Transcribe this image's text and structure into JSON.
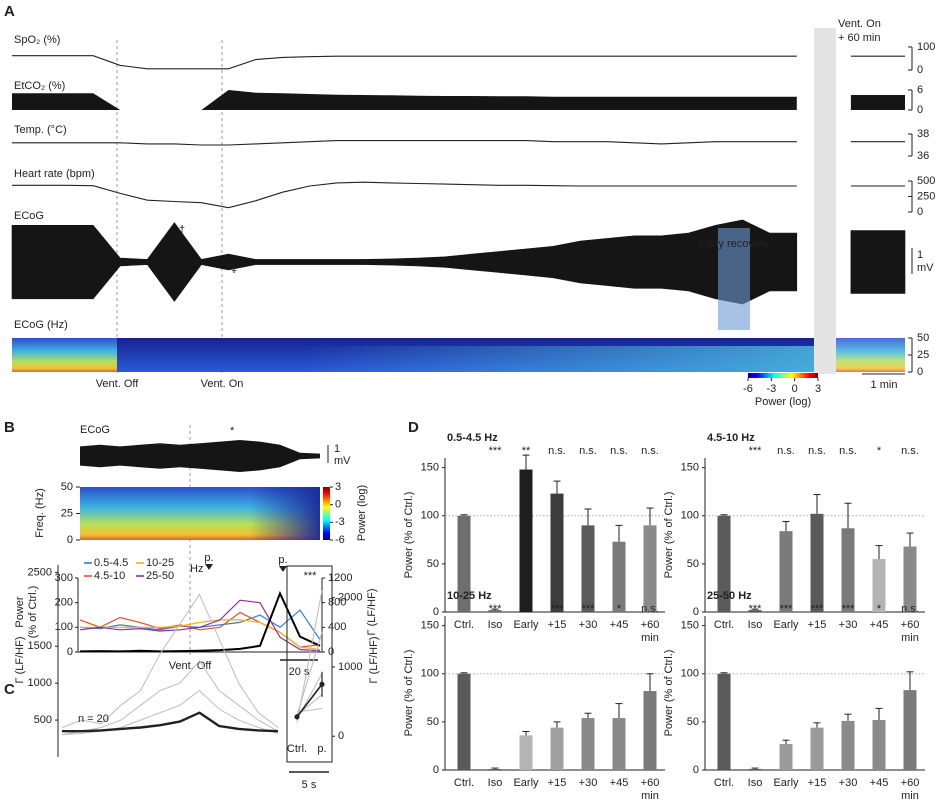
{
  "chart_data": [
    {
      "type": "physio",
      "panel": "A",
      "traces": [
        {
          "name": "SpO₂ (%)",
          "style": "line",
          "ylim": [
            0,
            100
          ],
          "yticks": [
            0,
            100
          ],
          "values": [
            62,
            62,
            62,
            62,
            20,
            5,
            5,
            5,
            5,
            45,
            55,
            58,
            60,
            60,
            60,
            60,
            60,
            60,
            60,
            60,
            60,
            60,
            60,
            60,
            60,
            60,
            60,
            60,
            60,
            60,
            null,
            60,
            60,
            60
          ]
        },
        {
          "name": "EtCO₂ (%)",
          "style": "area",
          "ylim": [
            0,
            6
          ],
          "yticks": [
            0,
            6
          ],
          "values": [
            5,
            5,
            5,
            5,
            0,
            0,
            0,
            0,
            6,
            5.2,
            5,
            4.8,
            4.6,
            4.5,
            4.4,
            4.3,
            4.2,
            4.2,
            4.1,
            4.1,
            4,
            4,
            4,
            4,
            4,
            4,
            4,
            4,
            4,
            4,
            null,
            4.5,
            4.5,
            4.5
          ]
        },
        {
          "name": "Temp. (°C)",
          "style": "line",
          "ylim": [
            36,
            38
          ],
          "yticks": [
            36,
            38
          ],
          "values": [
            37.2,
            37.2,
            37.2,
            37.2,
            37.2,
            37.1,
            37.1,
            37.0,
            37.0,
            37.1,
            37.2,
            37.3,
            37.4,
            37.4,
            37.4,
            37.4,
            37.4,
            37.4,
            37.4,
            37.4,
            37.3,
            37.3,
            37.3,
            37.2,
            37.1,
            37.2,
            37.3,
            37.3,
            37.3,
            37.3,
            null,
            37.3,
            37.3,
            37.3
          ]
        },
        {
          "name": "Heart rate (bpm)",
          "style": "line",
          "ylim": [
            0,
            500
          ],
          "yticks": [
            0,
            250,
            500
          ],
          "values": [
            430,
            430,
            430,
            425,
            300,
            190,
            170,
            150,
            70,
            180,
            320,
            420,
            470,
            480,
            470,
            460,
            450,
            440,
            430,
            430,
            425,
            420,
            420,
            420,
            420,
            420,
            420,
            420,
            420,
            420,
            null,
            420,
            420,
            420
          ]
        },
        {
          "name": "ECoG",
          "style": "envelope",
          "ylim": [
            -1.6,
            1.6
          ],
          "values": [
            1.4,
            1.4,
            1.4,
            1.4,
            0.15,
            0.1,
            1.5,
            0.1,
            0.3,
            0.1,
            0.1,
            0.1,
            0.1,
            0.1,
            0.12,
            0.15,
            0.2,
            0.3,
            0.4,
            0.5,
            0.6,
            0.8,
            0.9,
            1.0,
            1.0,
            1.1,
            1.4,
            1.6,
            1.1,
            1.1,
            null,
            1.2,
            1.2,
            1.2
          ]
        }
      ],
      "scale_bar": [
        "1",
        "mV"
      ],
      "daggers": [
        "†",
        "†"
      ],
      "recovery_label": "Early recovery",
      "gap_label": [
        "Vent. On",
        "+ 60 min"
      ],
      "markers": [
        "Vent. Off",
        "Vent. On"
      ],
      "spec_label": "ECoG (Hz)",
      "spec_ylim": [
        0,
        50
      ],
      "spec_yticks": [
        0,
        25,
        50
      ],
      "colorbar_lim": [
        -6,
        3
      ],
      "colorbar_ticks": [
        -6,
        -3,
        0,
        3
      ],
      "colorbar_label": "Power (log)",
      "time_scale": "1 min"
    },
    {
      "type": "spectral",
      "panel": "B",
      "ecog_label": "ECoG",
      "star": "*",
      "scale_bar": [
        "1",
        "mV"
      ],
      "ecog_values": [
        0.6,
        0.7,
        0.6,
        0.7,
        0.8,
        0.7,
        0.8,
        0.9,
        1.0,
        0.9,
        0.7,
        0.2,
        0.15
      ],
      "spec_ylabel": "Freq. (Hz)",
      "spec_ylim": [
        0,
        50
      ],
      "spec_yticks": [
        0,
        25,
        50
      ],
      "colorbar_lim": [
        -6,
        3
      ],
      "colorbar_ticks": [
        -6,
        -3,
        0,
        3
      ],
      "colorbar_label": "Power (log)",
      "ylabel": [
        "Power",
        "(% of Ctrl.)"
      ],
      "ylim": [
        0,
        300
      ],
      "yticks": [
        0,
        100,
        200,
        300
      ],
      "y2label": "Γ (LF/HF)",
      "y2lim": [
        0,
        1200
      ],
      "y2ticks": [
        0,
        400,
        800,
        1200
      ],
      "legend_unit": "Hz",
      "series": [
        {
          "name": "0.5-4.5",
          "color": "#2f7fd0",
          "values": [
            100,
            95,
            110,
            100,
            90,
            105,
            100,
            110,
            120,
            150,
            100,
            170,
            50
          ]
        },
        {
          "name": "4.5-10",
          "color": "#e0522a",
          "values": [
            130,
            100,
            140,
            120,
            95,
            110,
            90,
            100,
            160,
            120,
            80,
            20,
            30
          ]
        },
        {
          "name": "10-25",
          "color": "#f2b01e",
          "values": [
            100,
            100,
            100,
            100,
            100,
            105,
            120,
            130,
            130,
            120,
            80,
            20,
            10
          ]
        },
        {
          "name": "25-50",
          "color": "#8b2f97",
          "values": [
            90,
            100,
            90,
            95,
            85,
            90,
            100,
            130,
            210,
            200,
            60,
            10,
            5
          ]
        },
        {
          "color": "#000000",
          "axis": "y2",
          "values": [
            10,
            15,
            10,
            20,
            10,
            15,
            20,
            30,
            50,
            100,
            950,
            250,
            100
          ]
        }
      ],
      "marker": "Vent. Off",
      "peak_label": "p.",
      "time_scale": "20 s"
    },
    {
      "type": "ratio",
      "panel": "C",
      "ylabel": "Γ (LF/HF)",
      "ylim": [
        0,
        2600
      ],
      "yticks": [
        500,
        1000,
        1500,
        2500
      ],
      "series": [
        {
          "color": "#bdbdbd",
          "values": [
            400,
            500,
            450,
            700,
            900,
            1400,
            1800,
            2200,
            1600,
            1000,
            600,
            400
          ]
        },
        {
          "color": "#bdbdbd",
          "values": [
            300,
            350,
            400,
            500,
            700,
            900,
            1000,
            1300,
            900,
            700,
            500,
            350
          ]
        },
        {
          "color": "#bdbdbd",
          "values": [
            300,
            320,
            350,
            400,
            500,
            600,
            700,
            900,
            650,
            500,
            400,
            320
          ]
        },
        {
          "color": "#222222",
          "values": [
            350,
            350,
            360,
            380,
            400,
            430,
            480,
            600,
            420,
            380,
            360,
            350
          ]
        }
      ],
      "n_label": "n = 20",
      "peak_label": "p.",
      "time_scale": "5 s",
      "inset": {
        "categories": [
          "Ctrl.",
          "p."
        ],
        "ylim": [
          -300,
          2400
        ],
        "yticks": [
          0,
          1000,
          2000
        ],
        "ylabel": "Γ (LF/HF)",
        "significance": "***",
        "lines": [
          [
            200,
            2100
          ],
          [
            300,
            1500
          ],
          [
            250,
            900
          ],
          [
            300,
            600
          ],
          [
            350,
            400
          ]
        ],
        "mean": [
          280,
          750
        ],
        "error": [
          40,
          180
        ]
      }
    },
    {
      "type": "bar",
      "panel": "D",
      "title": "0.5-4.5 Hz",
      "title_color": "#2f7fd0",
      "categories": [
        "Ctrl.",
        "Iso",
        "Early",
        "+15",
        "+30",
        "+45",
        "+60"
      ],
      "x_unit": "min",
      "values": [
        100,
        2,
        148,
        123,
        90,
        73,
        90
      ],
      "errors": [
        1,
        1,
        15,
        13,
        17,
        17,
        18
      ],
      "significance": [
        null,
        "***",
        "**",
        "n.s.",
        "n.s.",
        "n.s.",
        "n.s."
      ],
      "colors": [
        "#6e6e6e",
        "#6e6e6e",
        "#1e1e1e",
        "#3c3c3c",
        "#5a5a5a",
        "#7a7a7a",
        "#8a8a8a"
      ],
      "ylabel": "Power (% of Ctrl.)",
      "ylim": [
        0,
        160
      ],
      "yticks": [
        0,
        50,
        100,
        150
      ],
      "reference_line": 100
    },
    {
      "type": "bar",
      "title": "4.5-10 Hz",
      "title_color": "#e0522a",
      "categories": [
        "Ctrl.",
        "Iso",
        "Early",
        "+15",
        "+30",
        "+45",
        "+60"
      ],
      "x_unit": "min",
      "values": [
        100,
        2,
        84,
        102,
        87,
        55,
        68
      ],
      "errors": [
        1,
        1,
        10,
        20,
        26,
        14,
        14
      ],
      "significance": [
        null,
        "***",
        "n.s.",
        "n.s.",
        "n.s.",
        "*",
        "n.s."
      ],
      "colors": [
        "#5a5a5a",
        "#5a5a5a",
        "#7a7a7a",
        "#5a5a5a",
        "#7a7a7a",
        "#b4b4b4",
        "#8a8a8a"
      ],
      "ylabel": "Power (% of Ctrl.)",
      "ylim": [
        0,
        160
      ],
      "yticks": [
        0,
        50,
        100,
        150
      ],
      "reference_line": 100
    },
    {
      "type": "bar",
      "title": "10-25 Hz",
      "title_color": "#f2b01e",
      "categories": [
        "Ctrl.",
        "Iso",
        "Early",
        "+15",
        "+30",
        "+45",
        "+60"
      ],
      "x_unit": "min",
      "values": [
        100,
        1,
        36,
        44,
        54,
        54,
        82
      ],
      "errors": [
        1,
        1,
        4,
        6,
        5,
        15,
        18
      ],
      "significance": [
        null,
        "***",
        "***",
        "***",
        "***",
        "*",
        "n.s."
      ],
      "colors": [
        "#5a5a5a",
        "#5a5a5a",
        "#b4b4b4",
        "#a0a0a0",
        "#8a8a8a",
        "#8a8a8a",
        "#7a7a7a"
      ],
      "ylabel": "Power (% of Ctrl.)",
      "ylim": [
        0,
        160
      ],
      "yticks": [
        0,
        50,
        100,
        150
      ],
      "reference_line": 100
    },
    {
      "type": "bar",
      "title": "25-50 Hz",
      "title_color": "#8b2f97",
      "categories": [
        "Ctrl.",
        "Iso",
        "Early",
        "+15",
        "+30",
        "+45",
        "+60"
      ],
      "x_unit": "min",
      "values": [
        100,
        1,
        27,
        44,
        51,
        52,
        83
      ],
      "errors": [
        1,
        1,
        4,
        5,
        7,
        12,
        19
      ],
      "significance": [
        null,
        "***",
        "***",
        "***",
        "***",
        "*",
        "n.s."
      ],
      "colors": [
        "#5a5a5a",
        "#5a5a5a",
        "#9a9a9a",
        "#9a9a9a",
        "#8a8a8a",
        "#8a8a8a",
        "#7a7a7a"
      ],
      "ylabel": "Power (% of Ctrl.)",
      "ylim": [
        0,
        160
      ],
      "yticks": [
        0,
        50,
        100,
        150
      ],
      "reference_line": 100
    }
  ]
}
